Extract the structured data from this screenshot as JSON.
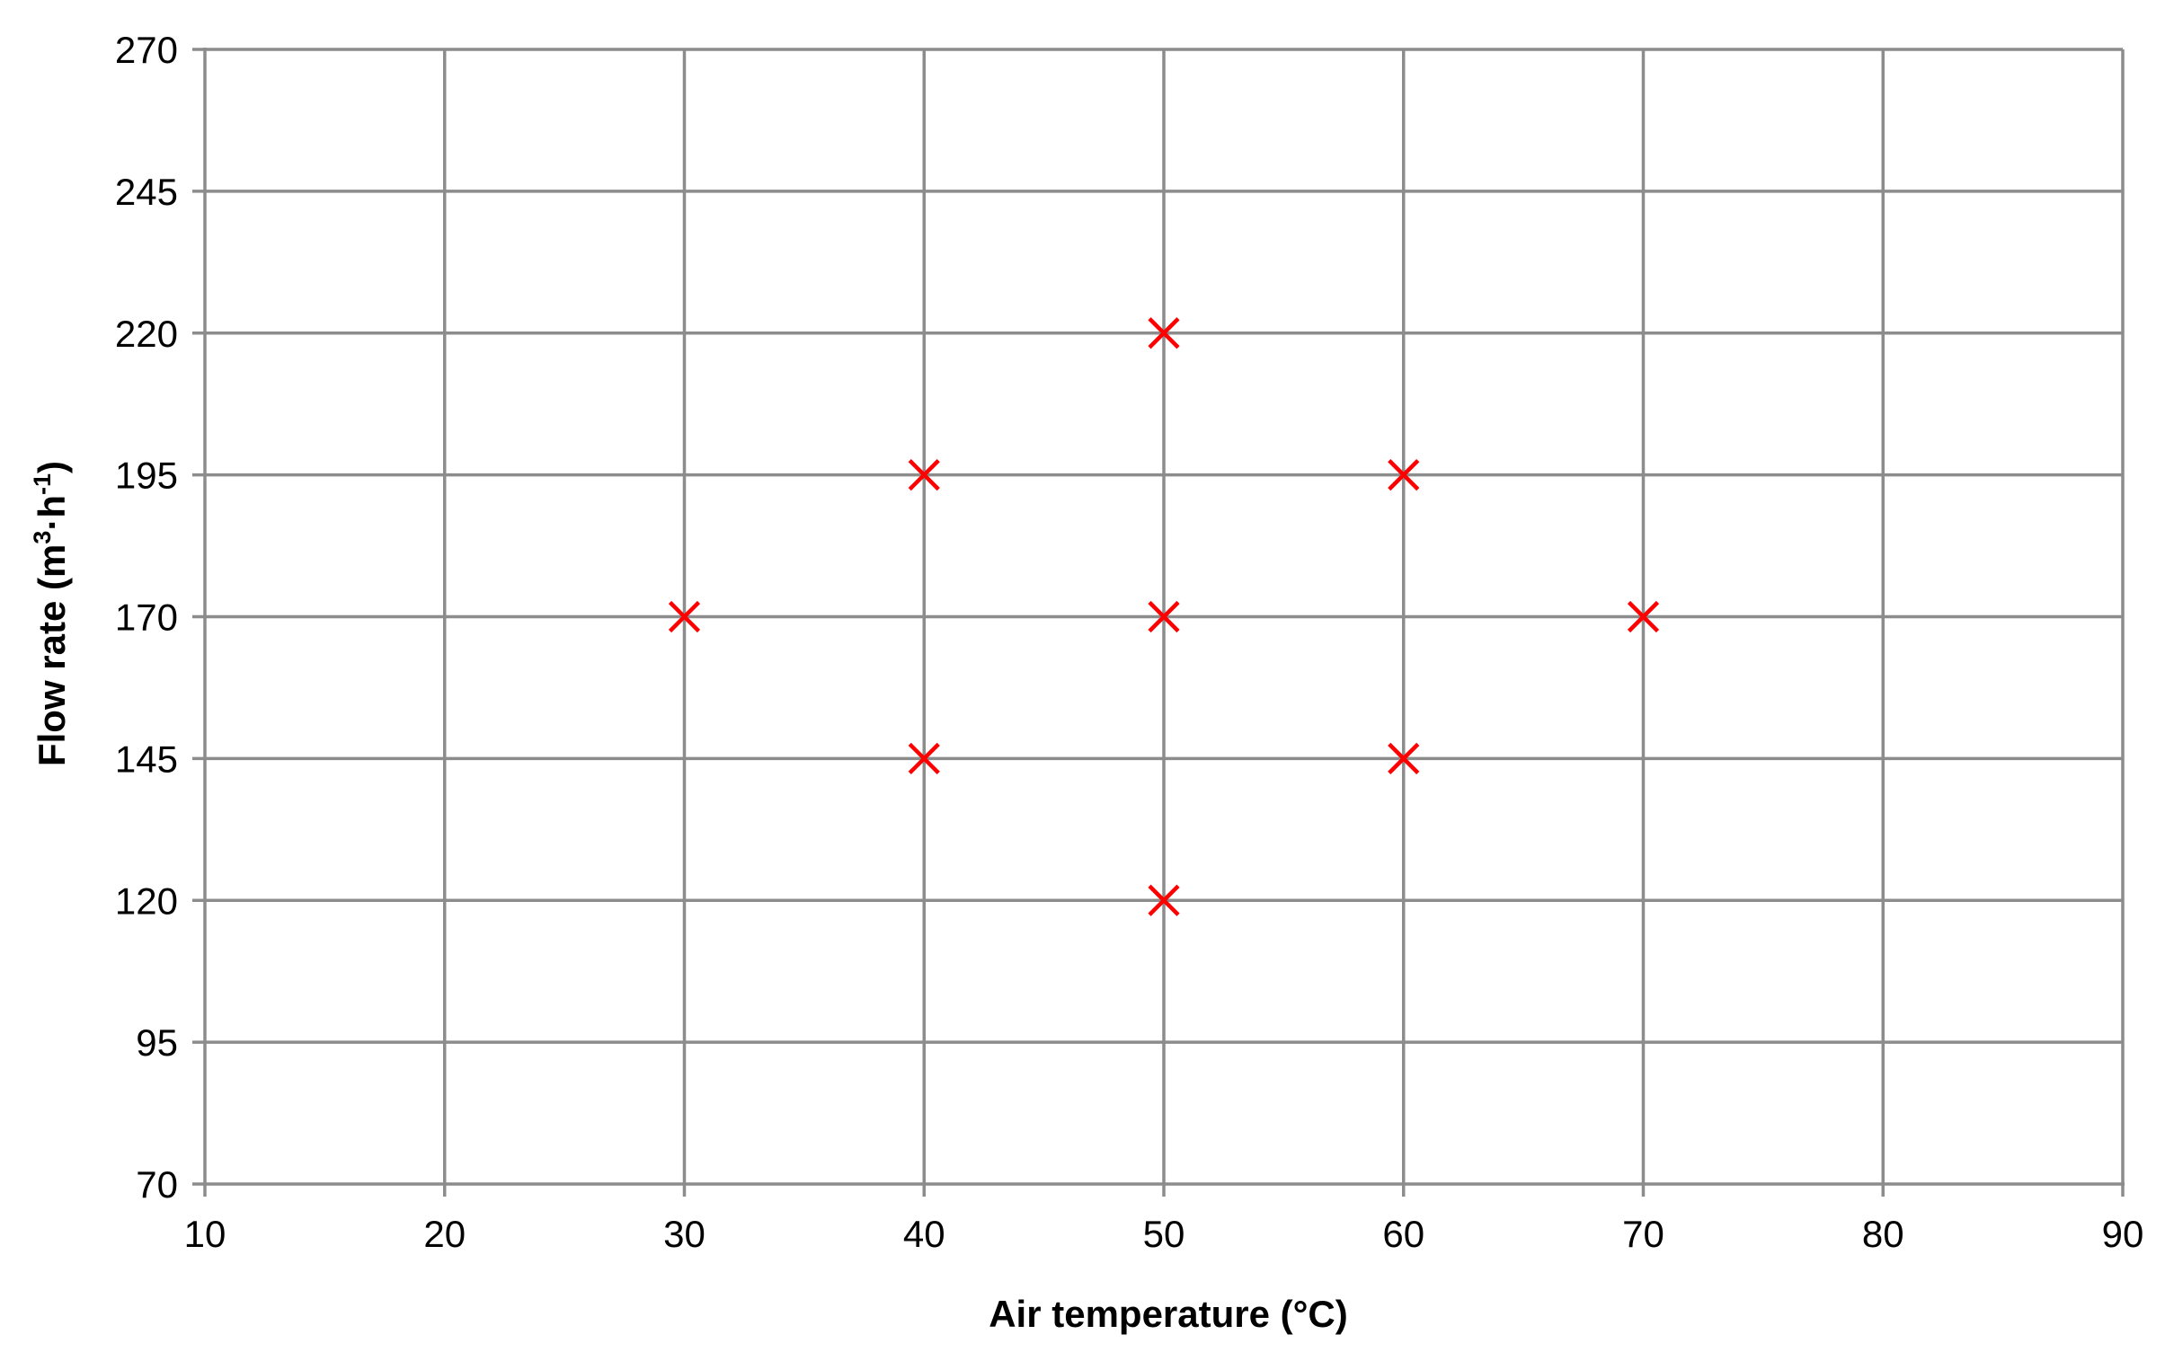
{
  "chart_data": {
    "type": "scatter",
    "title": "",
    "xlabel": "Air temperature (°C)",
    "ylabel": {
      "prefix": "Flow rate (m",
      "sup1": "3",
      "mid": "·h",
      "sup2": "-1",
      "suffix": ")"
    },
    "xlim": [
      10,
      90
    ],
    "ylim": [
      70,
      270
    ],
    "xticks": [
      10,
      20,
      30,
      40,
      50,
      60,
      70,
      80,
      90
    ],
    "yticks": [
      70,
      95,
      120,
      145,
      170,
      195,
      220,
      245,
      270
    ],
    "grid": true,
    "marker": "x",
    "marker_color": "#ff0000",
    "grid_color": "#8c8c8c",
    "series": [
      {
        "x": [
          50,
          40,
          60,
          30,
          50,
          70,
          40,
          60,
          50
        ],
        "y": [
          220,
          195,
          195,
          170,
          170,
          170,
          145,
          145,
          120
        ]
      }
    ]
  }
}
